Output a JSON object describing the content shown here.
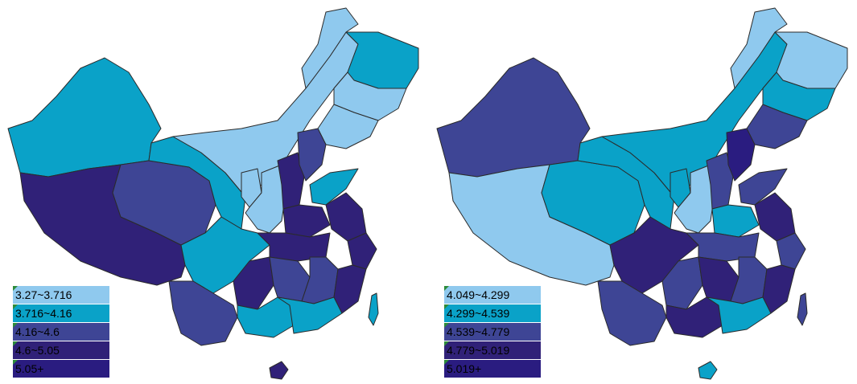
{
  "left_map": {
    "legend": [
      {
        "label": "3.27~3.716",
        "color": "#8fc9ee"
      },
      {
        "label": "3.716~4.16",
        "color": "#0aa2c8"
      },
      {
        "label": "4.16~4.6",
        "color": "#3e4595"
      },
      {
        "label": "4.6~5.05",
        "color": "#302178"
      },
      {
        "label": "5.05+",
        "color": "#2a1c80"
      }
    ]
  },
  "right_map": {
    "legend": [
      {
        "label": "4.049~4.299",
        "color": "#8fc9ee"
      },
      {
        "label": "4.299~4.539",
        "color": "#0aa2c8"
      },
      {
        "label": "4.539~4.779",
        "color": "#3e4595"
      },
      {
        "label": "4.779~5.019",
        "color": "#302178"
      },
      {
        "label": "5.019+",
        "color": "#2a1c80"
      }
    ]
  },
  "legend_mark_color": "#2d8b3a"
}
